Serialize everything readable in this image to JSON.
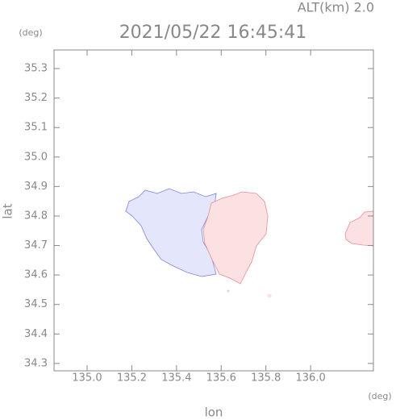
{
  "chart_data": {
    "type": "map",
    "title": "2021/05/22 16:45:41",
    "subtitle": "ALT(km) 2.0",
    "x_label": "lon",
    "y_label": "lat",
    "x_unit": "(deg)",
    "y_unit": "(deg)",
    "xlim": [
      134.852,
      136.281
    ],
    "ylim": [
      34.275,
      35.363
    ],
    "xticks": [
      {
        "value": 135,
        "label": "135.0"
      },
      135.2,
      135.4,
      135.6,
      135.8,
      {
        "value": 136,
        "label": "136.0"
      }
    ],
    "yticks": [
      34.3,
      34.4,
      34.5,
      34.6,
      34.7,
      34.8,
      34.9,
      {
        "value": 35,
        "label": "35.0"
      },
      35.1,
      35.2,
      35.3
    ]
  }
}
